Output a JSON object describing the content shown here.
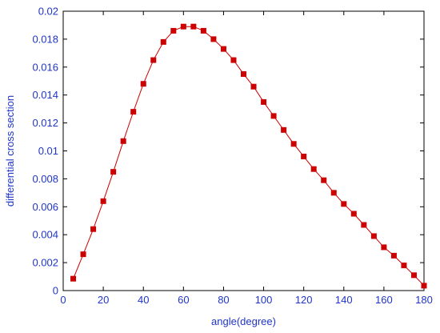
{
  "chart_data": {
    "type": "line",
    "title": "",
    "xlabel": "angle(degree)",
    "ylabel": "differential cross section",
    "xlim": [
      0,
      180
    ],
    "ylim": [
      0,
      0.02
    ],
    "xticks": [
      "0",
      "20",
      "40",
      "60",
      "80",
      "100",
      "120",
      "140",
      "160",
      "180"
    ],
    "yticks": [
      "0",
      "0.002",
      "0.004",
      "0.006",
      "0.008",
      "0.01",
      "0.012",
      "0.014",
      "0.016",
      "0.018",
      "0.02"
    ],
    "grid": false,
    "legend": "none",
    "series": [
      {
        "x": [
          5,
          10,
          15,
          20,
          25,
          30,
          35,
          40,
          45,
          50,
          55,
          60,
          65,
          70,
          75,
          80,
          85,
          90,
          95,
          100,
          105,
          110,
          115,
          120,
          125,
          130,
          135,
          140,
          145,
          150,
          155,
          160,
          165,
          170,
          175,
          180
        ],
        "y": [
          0.00085,
          0.0026,
          0.0044,
          0.0064,
          0.0085,
          0.0107,
          0.0128,
          0.0148,
          0.0165,
          0.0178,
          0.0186,
          0.0189,
          0.0189,
          0.0186,
          0.018,
          0.0173,
          0.0165,
          0.0155,
          0.0146,
          0.0135,
          0.0125,
          0.0115,
          0.0105,
          0.0096,
          0.0087,
          0.0079,
          0.007,
          0.0062,
          0.0055,
          0.0047,
          0.0039,
          0.0031,
          0.0025,
          0.0018,
          0.0011,
          0.00035
        ],
        "color": "#cc0000",
        "marker": "square"
      }
    ],
    "colors": {
      "axis": "#000000",
      "text": "#1f35c8",
      "series": "#cc0000"
    }
  }
}
